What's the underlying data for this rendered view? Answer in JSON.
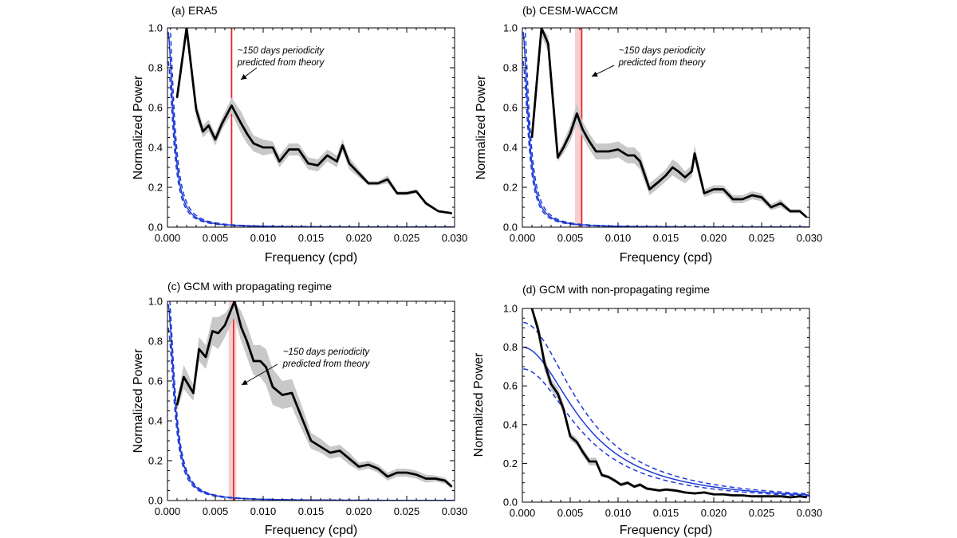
{
  "chart_data": [
    {
      "panel": "a",
      "type": "line",
      "title": "(a) ERA5",
      "xlabel": "Frequency (cpd)",
      "ylabel": "Normalized Power",
      "xlim": [
        0,
        0.03
      ],
      "ylim": [
        0,
        1.0
      ],
      "xticks": [
        "0.000",
        "0.005",
        "0.010",
        "0.015",
        "0.020",
        "0.025",
        "0.030"
      ],
      "yticks": [
        "0.0",
        "0.2",
        "0.4",
        "0.6",
        "0.8",
        "1.0"
      ],
      "annotation": [
        "~150 days periodicity",
        "predicted from theory"
      ],
      "vline": {
        "x": 0.0067,
        "band": [
          0.0066,
          0.0068
        ],
        "color": "#e8202a"
      },
      "spectrum": {
        "name": "Normalized power spectrum",
        "x": [
          0.001,
          0.002,
          0.003,
          0.0037,
          0.0043,
          0.005,
          0.0057,
          0.0067,
          0.0077,
          0.0083,
          0.009,
          0.01,
          0.011,
          0.0117,
          0.0127,
          0.0137,
          0.0147,
          0.0157,
          0.0167,
          0.0177,
          0.0183,
          0.019,
          0.02,
          0.021,
          0.022,
          0.023,
          0.024,
          0.025,
          0.026,
          0.027,
          0.0283,
          0.0297
        ],
        "values": [
          0.65,
          1.0,
          0.59,
          0.48,
          0.51,
          0.44,
          0.52,
          0.61,
          0.52,
          0.47,
          0.42,
          0.4,
          0.4,
          0.33,
          0.39,
          0.39,
          0.32,
          0.31,
          0.36,
          0.33,
          0.41,
          0.32,
          0.27,
          0.22,
          0.22,
          0.24,
          0.17,
          0.17,
          0.18,
          0.12,
          0.08,
          0.07
        ],
        "band_lower": [
          0.65,
          1.0,
          0.55,
          0.45,
          0.48,
          0.41,
          0.49,
          0.57,
          0.47,
          0.42,
          0.38,
          0.36,
          0.37,
          0.3,
          0.36,
          0.36,
          0.29,
          0.28,
          0.33,
          0.3,
          0.38,
          0.29,
          0.25,
          0.21,
          0.21,
          0.22,
          0.16,
          0.16,
          0.17,
          0.11,
          0.075,
          0.065
        ],
        "band_upper": [
          0.65,
          1.0,
          0.63,
          0.51,
          0.54,
          0.47,
          0.55,
          0.65,
          0.58,
          0.52,
          0.46,
          0.44,
          0.43,
          0.36,
          0.42,
          0.42,
          0.35,
          0.34,
          0.39,
          0.36,
          0.44,
          0.35,
          0.29,
          0.23,
          0.23,
          0.26,
          0.18,
          0.18,
          0.19,
          0.13,
          0.085,
          0.075
        ]
      },
      "red_noise": {
        "x0": 0.00068,
        "amp": 1.0,
        "dash_factors": [
          1.2,
          0.85
        ]
      }
    },
    {
      "panel": "b",
      "type": "line",
      "title": "(b) CESM-WACCM",
      "xlabel": "Frequency (cpd)",
      "ylabel": "Normalized Power",
      "xlim": [
        0,
        0.03
      ],
      "ylim": [
        0,
        1.0
      ],
      "xticks": [
        "0.000",
        "0.005",
        "0.010",
        "0.015",
        "0.020",
        "0.025",
        "0.030"
      ],
      "yticks": [
        "0.0",
        "0.2",
        "0.4",
        "0.6",
        "0.8",
        "1.0"
      ],
      "annotation": [
        "~150 days periodicity",
        "predicted from theory"
      ],
      "vline": {
        "x": 0.0062,
        "band": [
          0.0055,
          0.0063
        ],
        "color": "#e8202a"
      },
      "spectrum": {
        "name": "Normalized power spectrum",
        "x": [
          0.001,
          0.002,
          0.0027,
          0.0037,
          0.0043,
          0.005,
          0.0057,
          0.0063,
          0.007,
          0.0077,
          0.0083,
          0.009,
          0.01,
          0.011,
          0.0117,
          0.0123,
          0.0133,
          0.0143,
          0.015,
          0.0157,
          0.0163,
          0.017,
          0.0177,
          0.018,
          0.019,
          0.02,
          0.021,
          0.022,
          0.023,
          0.024,
          0.025,
          0.026,
          0.027,
          0.028,
          0.029,
          0.0297
        ],
        "values": [
          0.45,
          1.0,
          0.92,
          0.35,
          0.4,
          0.47,
          0.57,
          0.49,
          0.43,
          0.38,
          0.38,
          0.38,
          0.39,
          0.36,
          0.36,
          0.33,
          0.19,
          0.23,
          0.26,
          0.3,
          0.28,
          0.25,
          0.28,
          0.37,
          0.17,
          0.19,
          0.19,
          0.14,
          0.14,
          0.16,
          0.15,
          0.1,
          0.12,
          0.08,
          0.08,
          0.05
        ],
        "band_lower": [
          0.45,
          0.96,
          0.88,
          0.33,
          0.37,
          0.43,
          0.52,
          0.45,
          0.39,
          0.34,
          0.34,
          0.34,
          0.35,
          0.32,
          0.32,
          0.29,
          0.16,
          0.2,
          0.23,
          0.26,
          0.24,
          0.22,
          0.25,
          0.33,
          0.15,
          0.17,
          0.17,
          0.12,
          0.12,
          0.14,
          0.13,
          0.085,
          0.1,
          0.07,
          0.07,
          0.045
        ],
        "band_upper": [
          0.45,
          1.0,
          0.96,
          0.37,
          0.43,
          0.51,
          0.62,
          0.53,
          0.47,
          0.42,
          0.42,
          0.42,
          0.43,
          0.4,
          0.4,
          0.37,
          0.22,
          0.26,
          0.29,
          0.34,
          0.32,
          0.28,
          0.31,
          0.41,
          0.19,
          0.21,
          0.21,
          0.16,
          0.16,
          0.18,
          0.17,
          0.115,
          0.14,
          0.09,
          0.09,
          0.055
        ]
      },
      "red_noise": {
        "x0": 0.00068,
        "amp": 1.0,
        "dash_factors": [
          1.2,
          0.85
        ]
      }
    },
    {
      "panel": "c",
      "type": "line",
      "title": "(c) GCM with propagating regime",
      "xlabel": "Frequency (cpd)",
      "ylabel": "Normalized Power",
      "xlim": [
        0,
        0.03
      ],
      "ylim": [
        0,
        1.0
      ],
      "xticks": [
        "0.000",
        "0.005",
        "0.010",
        "0.015",
        "0.020",
        "0.025",
        "0.030"
      ],
      "yticks": [
        "0.0",
        "0.2",
        "0.4",
        "0.6",
        "0.8",
        "1.0"
      ],
      "annotation": [
        "~150 days periodicity",
        "predicted from theory"
      ],
      "vline": {
        "x": 0.0069,
        "band": [
          0.0064,
          0.0072
        ],
        "color": "#e8202a"
      },
      "spectrum": {
        "name": "Normalized power spectrum",
        "x": [
          0.001,
          0.0017,
          0.0027,
          0.0033,
          0.004,
          0.0047,
          0.0053,
          0.006,
          0.007,
          0.0077,
          0.0083,
          0.009,
          0.0097,
          0.0103,
          0.011,
          0.012,
          0.013,
          0.014,
          0.015,
          0.016,
          0.017,
          0.018,
          0.019,
          0.02,
          0.021,
          0.022,
          0.023,
          0.024,
          0.025,
          0.026,
          0.027,
          0.028,
          0.029,
          0.0297
        ],
        "values": [
          0.48,
          0.62,
          0.54,
          0.76,
          0.72,
          0.85,
          0.84,
          0.88,
          1.0,
          0.87,
          0.8,
          0.7,
          0.7,
          0.67,
          0.57,
          0.53,
          0.54,
          0.42,
          0.3,
          0.27,
          0.24,
          0.25,
          0.21,
          0.17,
          0.18,
          0.16,
          0.12,
          0.14,
          0.14,
          0.13,
          0.11,
          0.11,
          0.1,
          0.07
        ],
        "band_lower": [
          0.45,
          0.56,
          0.5,
          0.7,
          0.66,
          0.78,
          0.76,
          0.82,
          0.92,
          0.8,
          0.72,
          0.63,
          0.62,
          0.58,
          0.48,
          0.46,
          0.47,
          0.36,
          0.26,
          0.24,
          0.21,
          0.22,
          0.18,
          0.15,
          0.16,
          0.14,
          0.1,
          0.12,
          0.12,
          0.11,
          0.09,
          0.095,
          0.085,
          0.06
        ],
        "band_upper": [
          0.51,
          0.68,
          0.58,
          0.82,
          0.78,
          0.92,
          0.92,
          0.94,
          1.0,
          0.95,
          0.88,
          0.78,
          0.78,
          0.76,
          0.66,
          0.6,
          0.61,
          0.48,
          0.34,
          0.31,
          0.27,
          0.28,
          0.24,
          0.19,
          0.2,
          0.18,
          0.14,
          0.16,
          0.16,
          0.15,
          0.13,
          0.125,
          0.115,
          0.08
        ]
      },
      "red_noise": {
        "x0": 0.0008,
        "amp": 1.0,
        "dash_factors": [
          1.1,
          0.88
        ]
      }
    },
    {
      "panel": "d",
      "type": "line",
      "title": "(d) GCM with non-propagating regime",
      "xlabel": "Frequency (cpd)",
      "ylabel": "Normalized Power",
      "xlim": [
        0,
        0.03
      ],
      "ylim": [
        0,
        1.0
      ],
      "xticks": [
        "0.000",
        "0.005",
        "0.010",
        "0.015",
        "0.020",
        "0.025",
        "0.030"
      ],
      "yticks": [
        "0.0",
        "0.2",
        "0.4",
        "0.6",
        "0.8",
        "1.0"
      ],
      "annotation": null,
      "vline": null,
      "spectrum": {
        "name": "Normalized power spectrum",
        "x": [
          0.001,
          0.0017,
          0.0023,
          0.003,
          0.0037,
          0.0043,
          0.005,
          0.0057,
          0.0063,
          0.007,
          0.0077,
          0.0083,
          0.009,
          0.0097,
          0.0103,
          0.011,
          0.0117,
          0.0123,
          0.013,
          0.0137,
          0.0143,
          0.015,
          0.016,
          0.017,
          0.018,
          0.019,
          0.02,
          0.021,
          0.022,
          0.023,
          0.024,
          0.025,
          0.026,
          0.027,
          0.028,
          0.029,
          0.0297
        ],
        "values": [
          1.0,
          0.88,
          0.72,
          0.61,
          0.56,
          0.48,
          0.34,
          0.31,
          0.26,
          0.21,
          0.21,
          0.14,
          0.13,
          0.11,
          0.09,
          0.1,
          0.08,
          0.09,
          0.07,
          0.065,
          0.06,
          0.065,
          0.06,
          0.05,
          0.045,
          0.05,
          0.04,
          0.04,
          0.035,
          0.035,
          0.03,
          0.03,
          0.03,
          0.03,
          0.025,
          0.03,
          0.025
        ],
        "band_lower": [
          1.0,
          0.84,
          0.68,
          0.58,
          0.53,
          0.45,
          0.32,
          0.29,
          0.24,
          0.19,
          0.19,
          0.13,
          0.12,
          0.1,
          0.08,
          0.09,
          0.07,
          0.08,
          0.062,
          0.057,
          0.053,
          0.057,
          0.053,
          0.044,
          0.04,
          0.044,
          0.035,
          0.035,
          0.03,
          0.03,
          0.026,
          0.026,
          0.026,
          0.026,
          0.022,
          0.026,
          0.022
        ],
        "band_upper": [
          1.0,
          0.92,
          0.76,
          0.64,
          0.59,
          0.51,
          0.36,
          0.33,
          0.28,
          0.23,
          0.23,
          0.15,
          0.14,
          0.12,
          0.1,
          0.11,
          0.09,
          0.1,
          0.078,
          0.073,
          0.067,
          0.073,
          0.067,
          0.056,
          0.05,
          0.056,
          0.045,
          0.045,
          0.04,
          0.04,
          0.034,
          0.034,
          0.034,
          0.034,
          0.028,
          0.034,
          0.028
        ]
      },
      "red_noise": {
        "x0": 0.0066,
        "amp": 0.8,
        "dash_factors": [
          1.16,
          0.86
        ]
      }
    }
  ]
}
